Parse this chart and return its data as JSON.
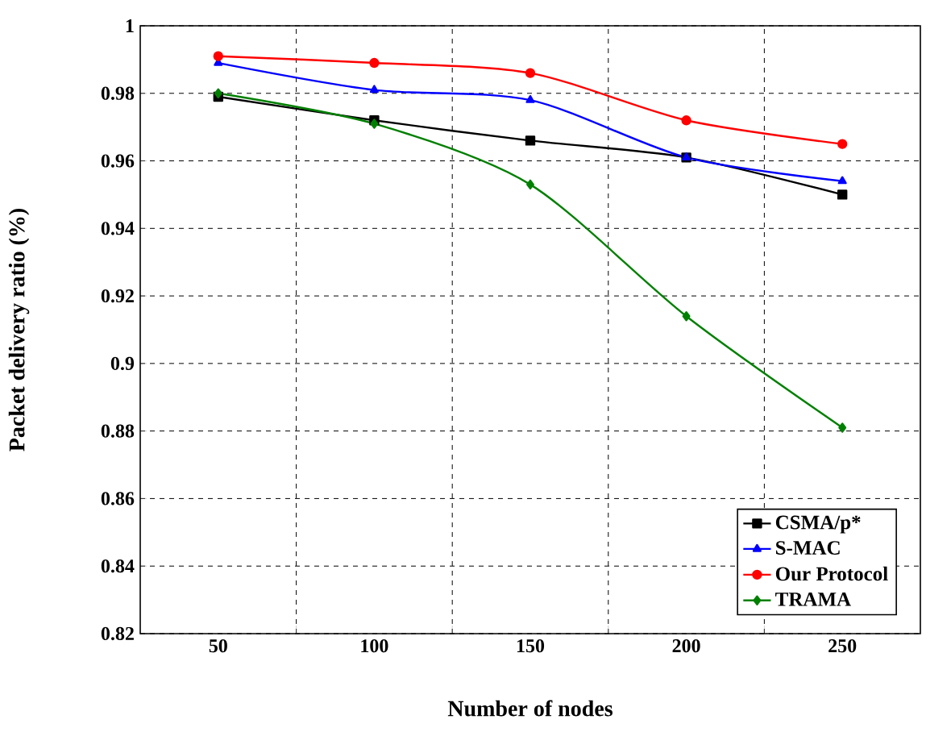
{
  "chart_data": {
    "type": "line",
    "xlabel": "Number  of nodes",
    "ylabel": "Packet delivery ratio (%)",
    "categories": [
      "50",
      "100",
      "150",
      "200",
      "250"
    ],
    "series": [
      {
        "name": "CSMA/p*",
        "color": "#000000",
        "marker": "square",
        "values": [
          0.979,
          0.972,
          0.966,
          0.961,
          0.95
        ]
      },
      {
        "name": "S-MAC",
        "color": "#0000ff",
        "marker": "triangle",
        "values": [
          0.989,
          0.981,
          0.978,
          0.961,
          0.954
        ]
      },
      {
        "name": "Our Protocol",
        "color": "#ff0000",
        "marker": "circle",
        "values": [
          0.991,
          0.989,
          0.986,
          0.972,
          0.965
        ]
      },
      {
        "name": "TRAMA",
        "color": "#008000",
        "marker": "diamond",
        "values": [
          0.98,
          0.971,
          0.953,
          0.914,
          0.881
        ]
      }
    ],
    "ylim": [
      0.82,
      1
    ],
    "yticks": [
      0.82,
      0.84,
      0.86,
      0.88,
      0.9,
      0.92,
      0.94,
      0.96,
      0.98,
      1
    ],
    "grid": true,
    "legend": "bottom right",
    "line_style": "solid"
  }
}
